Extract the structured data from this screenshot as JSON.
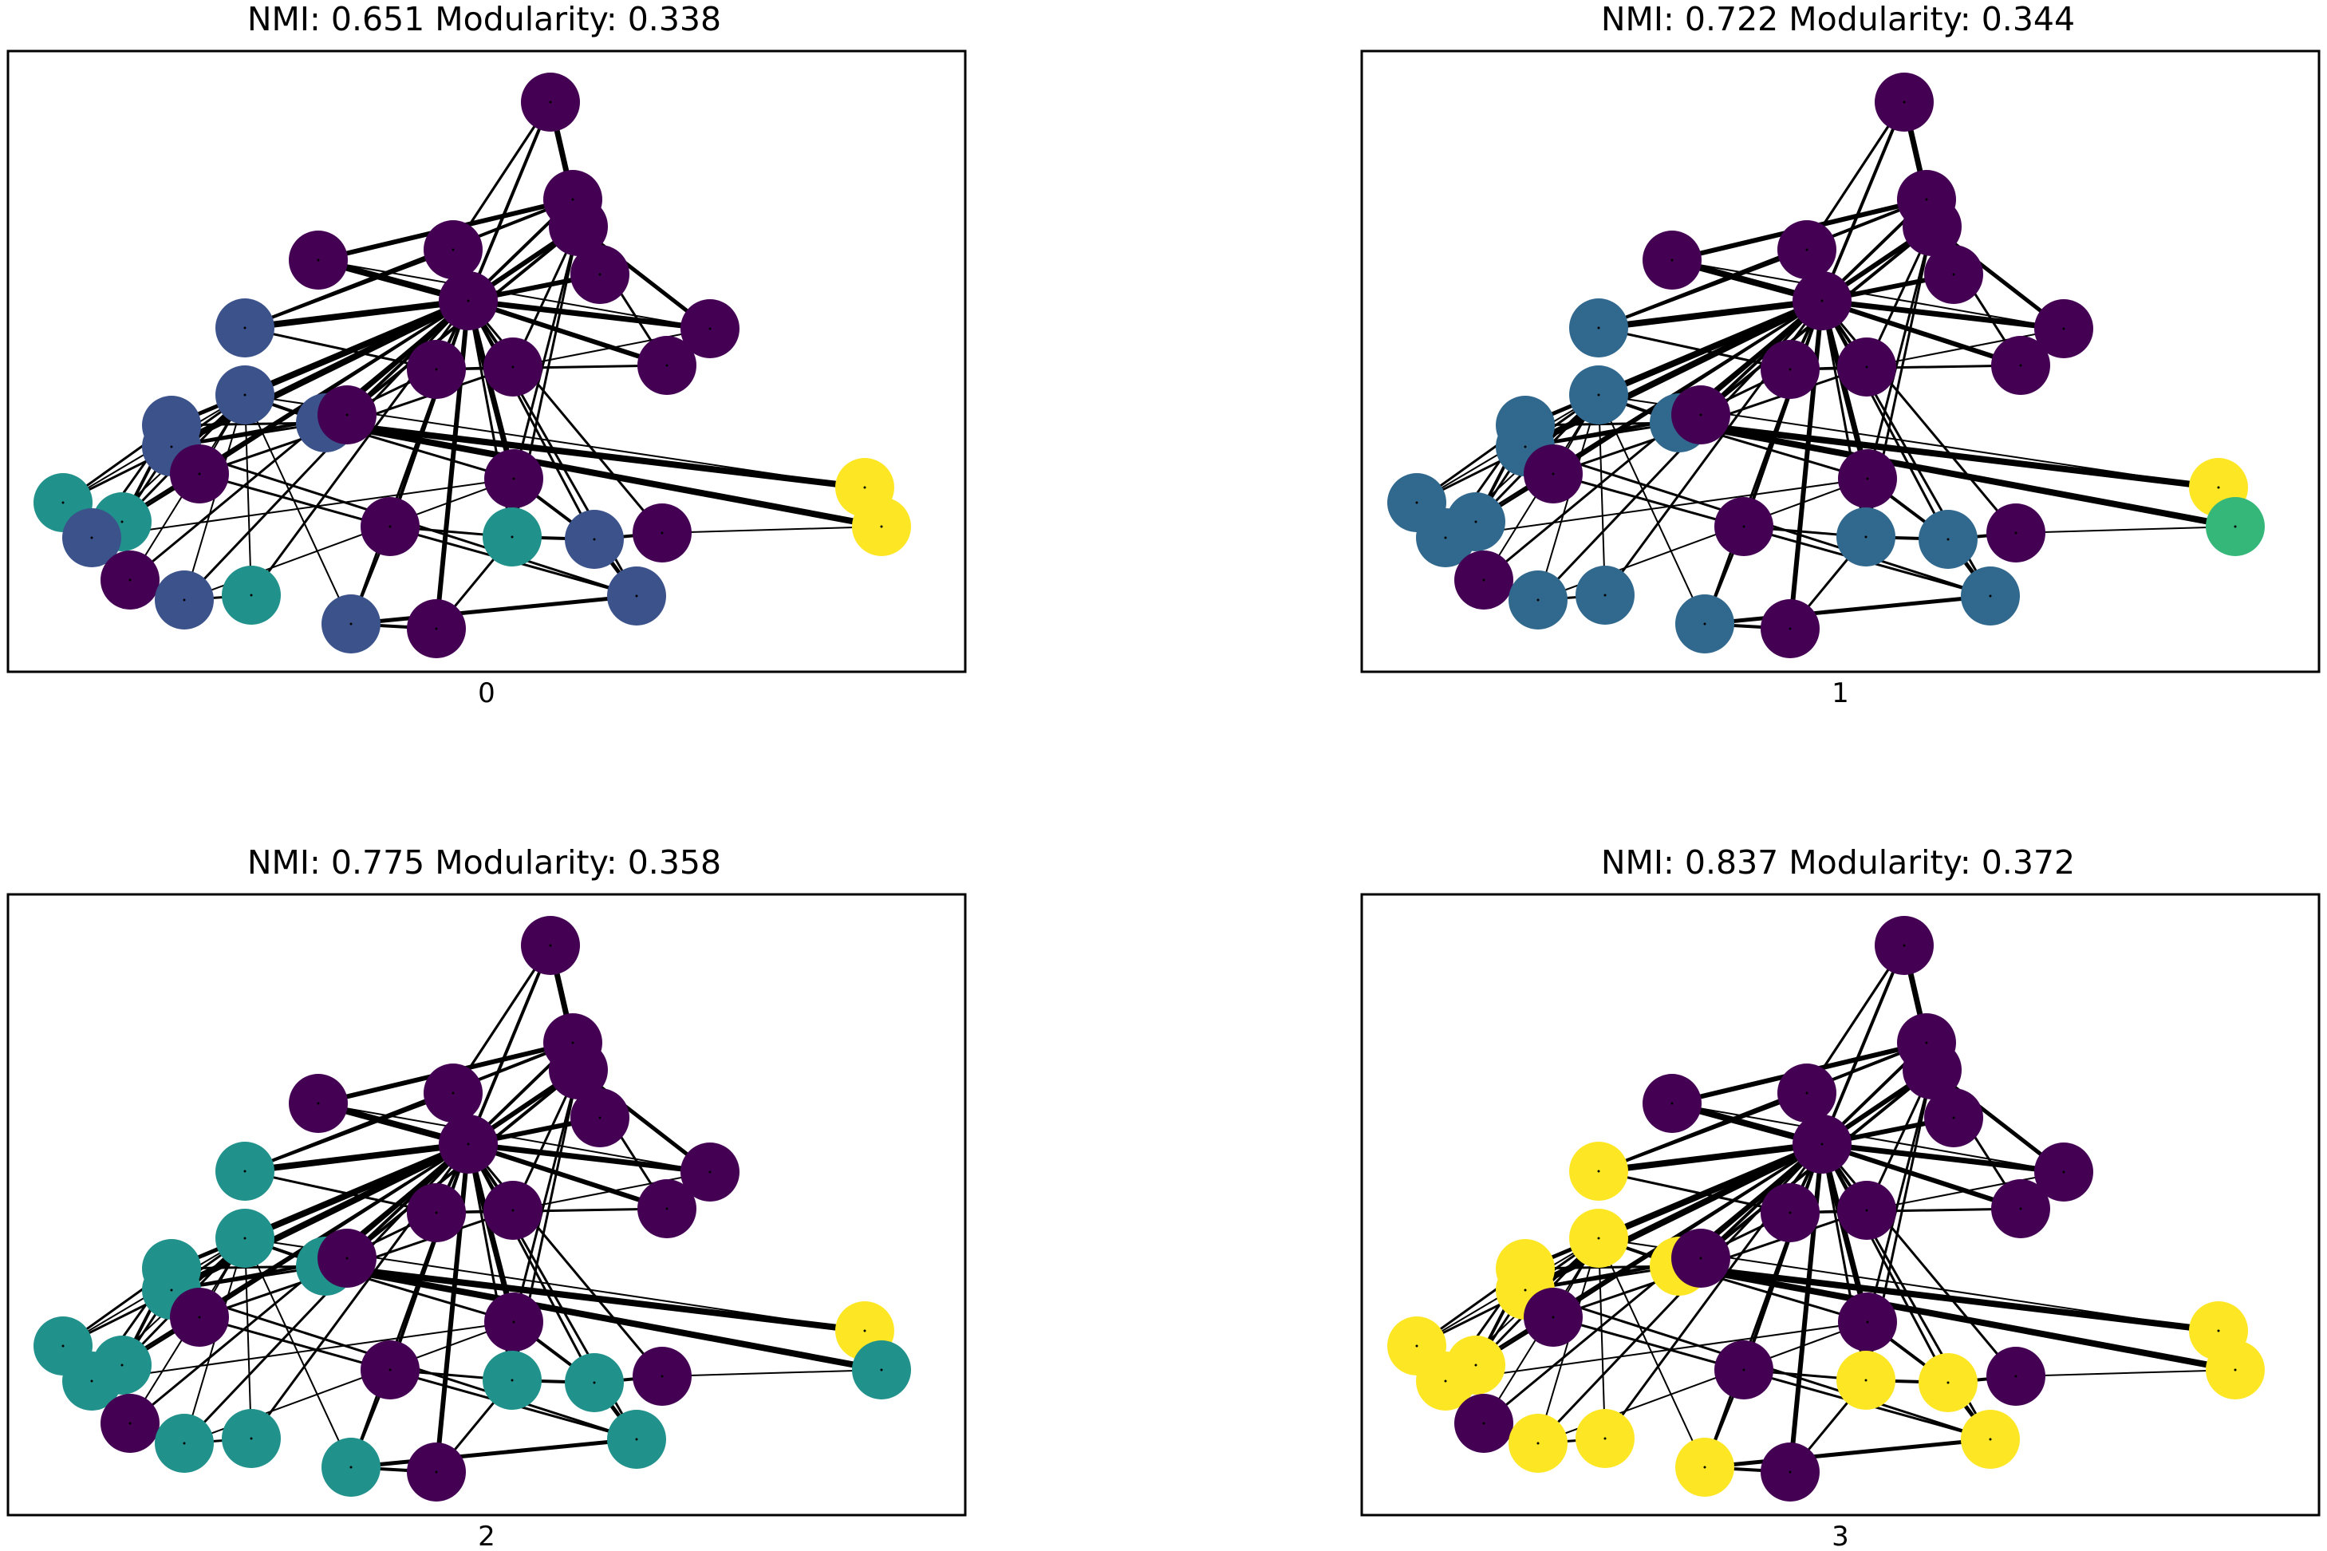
{
  "figure": {
    "panels": [
      {
        "title": "NMI: 0.651  Modularity: 0.338",
        "label": "0",
        "communities": [
          1,
          1,
          1,
          1,
          1,
          1,
          1,
          1,
          0,
          0,
          1,
          1,
          1,
          1,
          0,
          0,
          1,
          1,
          0,
          1,
          0,
          1,
          0,
          0,
          0,
          0,
          0,
          0,
          0,
          0,
          0,
          0,
          0,
          0
        ]
      },
      {
        "title": "NMI: 0.722  Modularity: 0.344",
        "label": "1",
        "communities": [
          1,
          1,
          1,
          1,
          1,
          1,
          1,
          1,
          0,
          0,
          1,
          1,
          1,
          1,
          0,
          0,
          1,
          1,
          0,
          1,
          0,
          1,
          0,
          0,
          0,
          0,
          0,
          0,
          0,
          0,
          0,
          0,
          0,
          0
        ]
      },
      {
        "title": "NMI: 0.775  Modularity: 0.358",
        "label": "2",
        "communities": [
          1,
          1,
          1,
          1,
          1,
          1,
          1,
          1,
          0,
          0,
          1,
          1,
          1,
          1,
          0,
          0,
          1,
          1,
          0,
          1,
          0,
          1,
          0,
          0,
          0,
          0,
          0,
          0,
          0,
          0,
          0,
          0,
          0,
          0
        ]
      },
      {
        "title": "NMI: 0.837  Modularity: 0.372",
        "label": "3",
        "communities": [
          1,
          1,
          1,
          1,
          1,
          1,
          1,
          1,
          0,
          0,
          1,
          1,
          1,
          1,
          0,
          0,
          1,
          1,
          0,
          1,
          0,
          1,
          0,
          0,
          0,
          0,
          0,
          0,
          0,
          0,
          0,
          0,
          0,
          0
        ]
      }
    ],
    "panel_node_colors": [
      [
        "#440154",
        "#3b528b",
        "#3b528b",
        "#3b528b",
        "#3b528b",
        "#21918c",
        "#21918c",
        "#3b528b",
        "#440154",
        "#440154",
        "#21918c",
        "#3b528b",
        "#3b528b",
        "#440154",
        "#440154",
        "#440154",
        "#21918c",
        "#3b528b",
        "#440154",
        "#3b528b",
        "#440154",
        "#3b528b",
        "#440154",
        "#440154",
        "#fde725",
        "#fde725",
        "#440154",
        "#440154",
        "#440154",
        "#440154",
        "#440154",
        "#440154",
        "#440154",
        "#440154"
      ],
      [
        "#440154",
        "#31688e",
        "#31688e",
        "#31688e",
        "#31688e",
        "#31688e",
        "#31688e",
        "#31688e",
        "#440154",
        "#440154",
        "#31688e",
        "#31688e",
        "#31688e",
        "#440154",
        "#440154",
        "#440154",
        "#31688e",
        "#31688e",
        "#440154",
        "#31688e",
        "#440154",
        "#31688e",
        "#440154",
        "#440154",
        "#fde725",
        "#35b779",
        "#440154",
        "#440154",
        "#440154",
        "#440154",
        "#440154",
        "#440154",
        "#440154",
        "#440154"
      ],
      [
        "#440154",
        "#21918c",
        "#21918c",
        "#21918c",
        "#21918c",
        "#21918c",
        "#21918c",
        "#21918c",
        "#440154",
        "#440154",
        "#21918c",
        "#21918c",
        "#21918c",
        "#440154",
        "#440154",
        "#440154",
        "#21918c",
        "#21918c",
        "#440154",
        "#21918c",
        "#440154",
        "#21918c",
        "#440154",
        "#440154",
        "#fde725",
        "#21918c",
        "#440154",
        "#440154",
        "#440154",
        "#440154",
        "#440154",
        "#440154",
        "#440154",
        "#440154"
      ],
      [
        "#440154",
        "#fde725",
        "#fde725",
        "#fde725",
        "#fde725",
        "#fde725",
        "#fde725",
        "#fde725",
        "#440154",
        "#440154",
        "#fde725",
        "#fde725",
        "#fde725",
        "#440154",
        "#440154",
        "#440154",
        "#fde725",
        "#fde725",
        "#440154",
        "#fde725",
        "#440154",
        "#fde725",
        "#440154",
        "#440154",
        "#fde725",
        "#fde725",
        "#440154",
        "#440154",
        "#440154",
        "#440154",
        "#440154",
        "#440154",
        "#440154",
        "#440154"
      ]
    ]
  }
}
